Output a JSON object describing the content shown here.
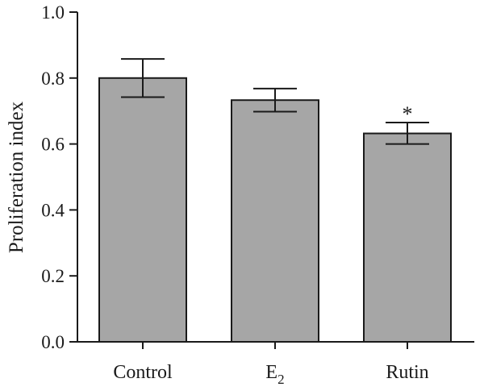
{
  "chart_data": {
    "type": "bar",
    "categories": [
      "Control",
      "E2",
      "Rutin"
    ],
    "category_labels": [
      {
        "base": "Control",
        "sub": ""
      },
      {
        "base": "E",
        "sub": "2"
      },
      {
        "base": "Rutin",
        "sub": ""
      }
    ],
    "values": [
      0.8,
      0.733,
      0.632
    ],
    "error_bars": [
      {
        "lower": 0.742,
        "upper": 0.858
      },
      {
        "lower": 0.698,
        "upper": 0.768
      },
      {
        "lower": 0.6,
        "upper": 0.665
      }
    ],
    "annotations": [
      "",
      "",
      "*"
    ],
    "ylabel": "Proliferation index",
    "xlabel": "",
    "ylim": [
      0,
      1.0
    ],
    "yticks": [
      "0.0",
      "0.2",
      "0.4",
      "0.6",
      "0.8",
      "1.0"
    ],
    "grid": false,
    "bar_color": "#a6a6a6",
    "edge_color": "#1a1a1a"
  }
}
